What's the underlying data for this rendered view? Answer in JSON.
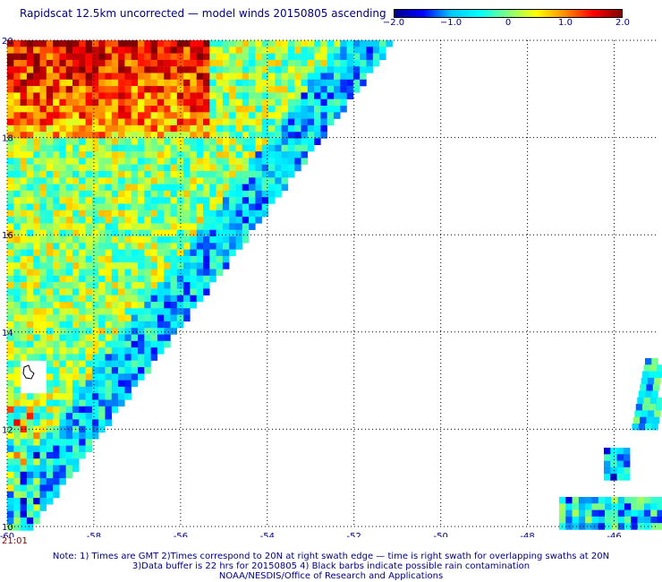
{
  "title": "Rapidscat 12.5km uncorrected — model winds 20150805 ascending",
  "colorbar": {
    "labels": [
      "−2.0",
      "−1.0",
      "0",
      "1.0",
      "2.0"
    ],
    "values": [
      -2.0,
      -1.0,
      0,
      1.0,
      2.0
    ],
    "colors": [
      "#00008c",
      "#0000ff",
      "#00c8ff",
      "#00ffff",
      "#80ff80",
      "#ffff00",
      "#ff8c00",
      "#ff0000",
      "#800000"
    ]
  },
  "map": {
    "lon_ticks": [
      "-60",
      "-58",
      "-56",
      "-54",
      "-52",
      "-50",
      "-48",
      "-46"
    ],
    "lon_values": [
      -60,
      -58,
      -56,
      -54,
      -52,
      -50,
      -48,
      -46
    ],
    "lat_ticks": [
      "20",
      "18",
      "16",
      "14",
      "12",
      "10"
    ],
    "lat_values": [
      20,
      18,
      16,
      14,
      12,
      10
    ],
    "lon_range": [
      -60,
      -45
    ],
    "lat_range": [
      10,
      20
    ],
    "grid": true,
    "time_label": "21:01"
  },
  "footer": {
    "line1": "Note: 1) Times are GMT 2)Times correspond to 20N at right swath edge — time is right swath for overlapping swaths at 20N",
    "line2": "3)Data buffer is 22 hrs for 20150805 4) Black barbs indicate possible rain contamination",
    "line3": "NOAA/NESDIS/Office of Research and Applications"
  }
}
